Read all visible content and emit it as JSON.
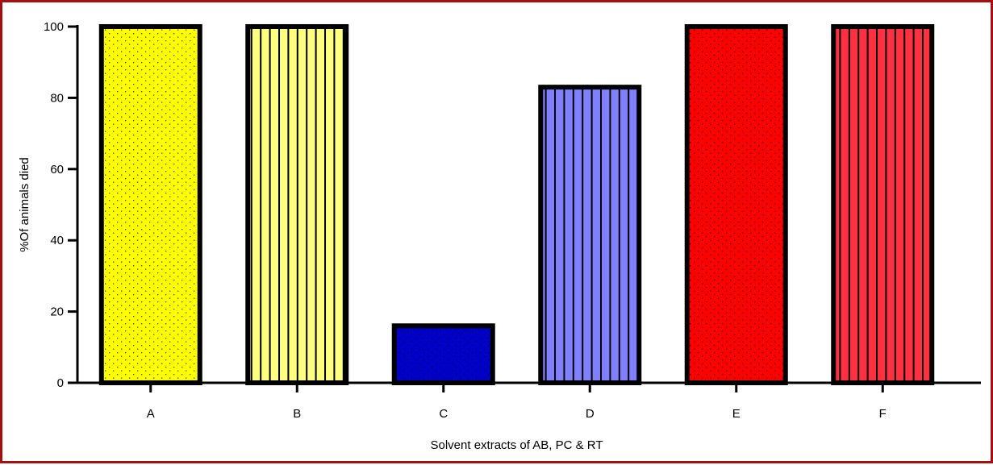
{
  "chart_data": {
    "type": "bar",
    "categories": [
      "A",
      "B",
      "C",
      "D",
      "E",
      "F"
    ],
    "values": [
      100,
      100,
      16,
      83,
      100,
      100
    ],
    "title": "",
    "xlabel": "Solvent extracts of AB, PC & RT",
    "ylabel": "%Of animals died",
    "ylim": [
      0,
      100
    ],
    "yticks": [
      0,
      20,
      40,
      60,
      80,
      100
    ],
    "grid": false,
    "legend": "none",
    "bar_styles": [
      {
        "fill": "#ffff00",
        "pattern": "dots",
        "pattern_color": "#444400"
      },
      {
        "fill": "#ffff80",
        "pattern": "vertical-lines",
        "pattern_color": "#000000"
      },
      {
        "fill": "#0000c8",
        "pattern": "dots",
        "pattern_color": "#000033"
      },
      {
        "fill": "#8080ff",
        "pattern": "vertical-lines",
        "pattern_color": "#000000"
      },
      {
        "fill": "#ff0000",
        "pattern": "dots",
        "pattern_color": "#330000"
      },
      {
        "fill": "#ff3040",
        "pattern": "vertical-lines",
        "pattern_color": "#000000"
      }
    ]
  }
}
